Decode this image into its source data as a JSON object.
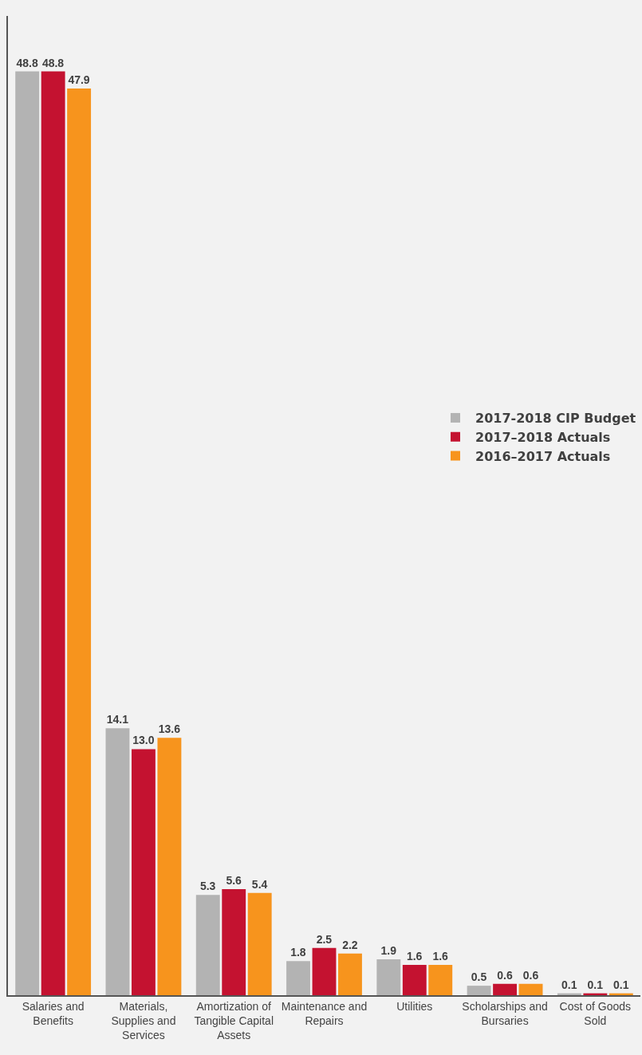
{
  "chart_data": {
    "type": "bar",
    "categories": [
      "Salaries and Benefits",
      "Materials, Supplies and Services",
      "Amortization of Tangible Capital Assets",
      "Maintenance and Repairs",
      "Utilities",
      "Scholarships and Bursaries",
      "Cost of Goods Sold"
    ],
    "series": [
      {
        "name": "2017-2018 CIP Budget",
        "color": "#b3b3b3",
        "values": [
          48.8,
          14.1,
          5.3,
          1.8,
          1.9,
          0.5,
          0.1
        ],
        "value_labels": [
          "48.8",
          "14.1",
          "5.3",
          "1.8",
          "1.9",
          "0.5",
          "0.1"
        ]
      },
      {
        "name": "2017–2018 Actuals",
        "color": "#c41230",
        "values": [
          48.8,
          13.0,
          5.6,
          2.5,
          1.6,
          0.6,
          0.1
        ],
        "value_labels": [
          "48.8",
          "13.0",
          "5.6",
          "2.5",
          "1.6",
          "0.6",
          "0.1"
        ]
      },
      {
        "name": "2016–2017 Actuals",
        "color": "#f7941d",
        "values": [
          47.9,
          13.6,
          5.4,
          2.2,
          1.6,
          0.6,
          0.1
        ],
        "value_labels": [
          "47.9",
          "13.6",
          "5.4",
          "2.2",
          "1.6",
          "0.6",
          "0.1"
        ]
      }
    ],
    "legend": "right",
    "grid": false
  }
}
